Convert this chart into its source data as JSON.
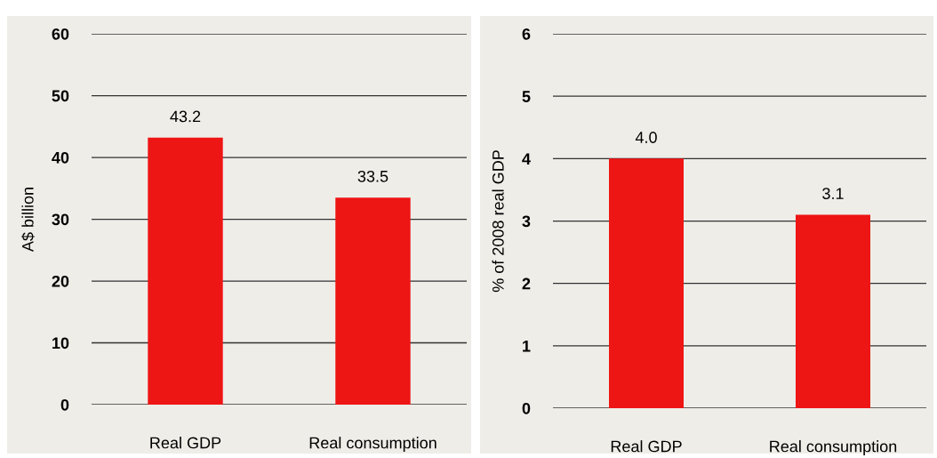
{
  "chart_data": [
    {
      "type": "bar",
      "ylabel": "A$ billion",
      "categories": [
        "Real GDP",
        "Real consumption"
      ],
      "values": [
        43.2,
        33.5
      ],
      "color": "#ee1515",
      "ylim": [
        0,
        60
      ],
      "yticks": [
        0,
        10,
        20,
        30,
        40,
        50,
        60
      ],
      "grid": "y",
      "data_labels": true
    },
    {
      "type": "bar",
      "ylabel": "% of 2008 real GDP",
      "categories": [
        "Real GDP",
        "Real consumption"
      ],
      "values": [
        4.0,
        3.1
      ],
      "value_labels": [
        "4.0",
        "3.1"
      ],
      "color": "#ee1515",
      "ylim": [
        0,
        6
      ],
      "yticks": [
        0,
        1,
        2,
        3,
        4,
        5,
        6
      ],
      "grid": "y"
    }
  ]
}
